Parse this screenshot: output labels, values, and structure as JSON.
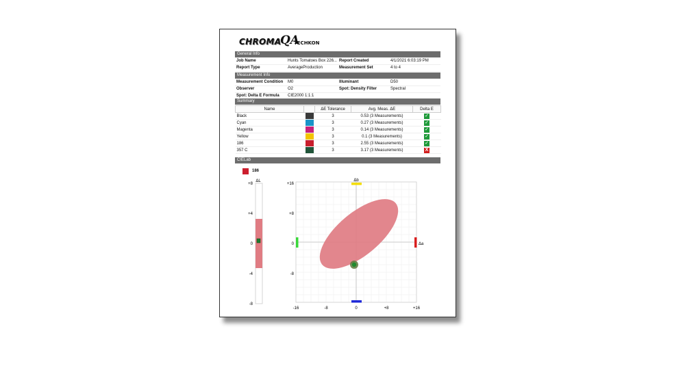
{
  "logo": {
    "chroma": "CHROMA",
    "qa": "QA",
    "techkon": "TECHKON"
  },
  "general": {
    "title": "General Info",
    "job_name_label": "Job Name",
    "job_name": "Hunts Tomatoes Box 226...",
    "report_created_label": "Report Created",
    "report_created": "4/1/2021 6:03:19 PM",
    "report_type_label": "Report Type",
    "report_type": "AverageProduction",
    "measurement_set_label": "Measurement Set",
    "measurement_set": "4 to 4"
  },
  "measurement": {
    "title": "Measurement Info",
    "condition_label": "Measurement Condition",
    "condition": "M0",
    "illuminant_label": "Illuminant",
    "illuminant": "D50",
    "observer_label": "Observer",
    "observer": "O2",
    "density_label": "Spot: Density Filter",
    "density": "Spectral",
    "formula_label": "Spot: Delta E Formula",
    "formula": "CIE2000 1:1:1"
  },
  "summary": {
    "title": "Summary",
    "headers": {
      "name": "Name",
      "tolerance": "ΔE Tolerance",
      "avg": "Avg. Meas. ΔE",
      "delta": "Delta E"
    },
    "rows": [
      {
        "name": "Black",
        "color": "#3a3a3a",
        "tolerance": "3",
        "avg": "0.53  (3 Measurements)",
        "pass": true
      },
      {
        "name": "Cyan",
        "color": "#1a93c8",
        "tolerance": "3",
        "avg": "0.27  (3 Measurements)",
        "pass": true
      },
      {
        "name": "Magenta",
        "color": "#c8207a",
        "tolerance": "3",
        "avg": "0.14  (3 Measurements)",
        "pass": true
      },
      {
        "name": "Yellow",
        "color": "#f3c300",
        "tolerance": "3",
        "avg": "0.1  (3 Measurements)",
        "pass": true
      },
      {
        "name": "186",
        "color": "#c81e2c",
        "tolerance": "3",
        "avg": "2.55  (3 Measurements)",
        "pass": true
      },
      {
        "name": "357 C",
        "color": "#21553a",
        "tolerance": "3",
        "avg": "3.17  (3 Measurements)",
        "pass": false
      }
    ],
    "pass_symbol": "✓",
    "fail_symbol": "X"
  },
  "cielab": {
    "title": "CIELab",
    "swatch_color": "#cc1f2e",
    "swatch_label": "186",
    "dl_label": "ΔL",
    "db_label": "Δb",
    "da_label": "Δa",
    "dl_ticks": [
      "+8",
      "+4",
      "0",
      "-4",
      "-8"
    ],
    "ab_y_ticks": [
      "+16",
      "+8",
      "0",
      "-8"
    ],
    "ab_x_ticks": [
      "-16",
      "-8",
      "0",
      "+8",
      "+16"
    ]
  }
}
